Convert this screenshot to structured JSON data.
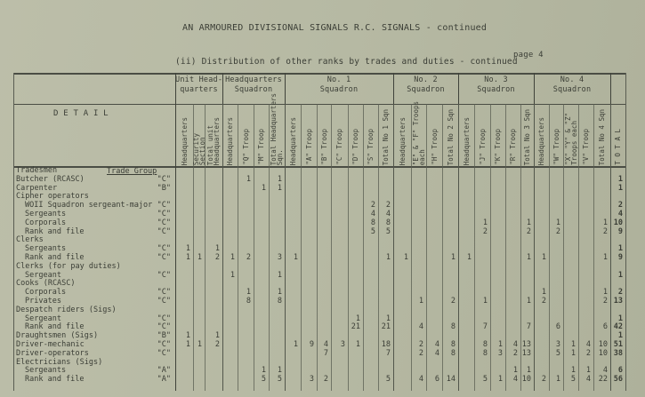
{
  "title": "AN ARMOURED DIVISIONAL SIGNALS R.C. SIGNALS - continued",
  "subtitle": "(ii) Distribution of other ranks by trades and duties - continued",
  "page": "page 4",
  "detail_header": "D E T A I L",
  "trade_group_header": "Trade Group",
  "groups": [
    {
      "label": "Unit Head-\nquarters",
      "from": 1,
      "to": 3
    },
    {
      "label": "Headquarters\nSquadron",
      "from": 4,
      "to": 7
    },
    {
      "label": "No. 1\nSquadron",
      "from": 8,
      "to": 14
    },
    {
      "label": "No. 2\nSquadron",
      "from": 15,
      "to": 18
    },
    {
      "label": "No. 3\nSquadron",
      "from": 19,
      "to": 23
    },
    {
      "label": "No. 4\nSquadron",
      "from": 24,
      "to": 28
    },
    {
      "label": "",
      "from": 29,
      "to": 29
    }
  ],
  "columns": [
    "Headquarters",
    "Security\nSection",
    "Total unit\nHeadquarters",
    "Headquarters",
    "\"Q\" Troop",
    "\"M\" Troop",
    "Total Headquarters\nSqn.",
    "Headquarters",
    "\"A\" Troop",
    "\"B\" Troop",
    "\"C\" Troop",
    "\"D\" Troop",
    "\"S\" Troop",
    "Total No 1 Sqn",
    "Headquarters",
    "\"E\" & \"F\" Troops\neach",
    "\"H\" Troop",
    "Total No 2 Sqn",
    "Headquarters",
    "\"J\" Troop",
    "\"K\" Troop",
    "\"R\" Troop",
    "Total No 3 Sqn",
    "Headquarters",
    "\"W\" Troop",
    "\"X\" \"Y\" & \"Z\"\nTroops each",
    "\"V\" Troop",
    "Total No 4 Sqn",
    "T O T A L"
  ],
  "rows": [
    {
      "label": "Tradesmen",
      "indent": 0,
      "group": ""
    },
    {
      "label": "Butcher (RCASC)",
      "indent": 0,
      "group": "\"C\"",
      "cells": {
        "5": "1",
        "7": "1",
        "29": "1"
      }
    },
    {
      "label": "Carpenter",
      "indent": 0,
      "group": "\"B\"",
      "cells": {
        "6": "1",
        "7": "1",
        "29": "1"
      }
    },
    {
      "label": "Cipher operators",
      "indent": 0,
      "group": ""
    },
    {
      "label": "WOII Squadron sergeant-major",
      "indent": 2,
      "group": "\"C\"",
      "cells": {
        "13": "2",
        "14": "2",
        "29": "2"
      }
    },
    {
      "label": "Sergeants",
      "indent": 2,
      "group": "\"C\"",
      "cells": {
        "13": "4",
        "14": "4",
        "29": "4"
      }
    },
    {
      "label": "Corporals",
      "indent": 2,
      "group": "\"C\"",
      "cells": {
        "13": "8",
        "14": "8",
        "20": "1",
        "23": "1",
        "25": "1",
        "28": "1",
        "29": "10"
      }
    },
    {
      "label": "Rank and file",
      "indent": 2,
      "group": "\"C\"",
      "cells": {
        "13": "5",
        "14": "5",
        "20": "2",
        "23": "2",
        "25": "2",
        "28": "2",
        "29": "9"
      }
    },
    {
      "label": "Clerks",
      "indent": 0,
      "group": ""
    },
    {
      "label": "Sergeants",
      "indent": 2,
      "group": "\"C\"",
      "cells": {
        "1": "1",
        "3": "1",
        "29": "1"
      }
    },
    {
      "label": "Rank and file",
      "indent": 2,
      "group": "\"C\"",
      "cells": {
        "1": "1",
        "2": "1",
        "3": "2",
        "4": "1",
        "5": "2",
        "7": "3",
        "8": "1",
        "14": "1",
        "15": "1",
        "18": "1",
        "19": "1",
        "23": "1",
        "24": "1",
        "28": "1",
        "29": "9"
      }
    },
    {
      "label": "Clerks (for pay duties)",
      "indent": 0,
      "group": ""
    },
    {
      "label": "Sergeant",
      "indent": 2,
      "group": "\"C\"",
      "cells": {
        "4": "1",
        "7": "1",
        "29": "1"
      }
    },
    {
      "label": "Cooks (RCASC)",
      "indent": 0,
      "group": ""
    },
    {
      "label": "Corporals",
      "indent": 2,
      "group": "\"C\"",
      "cells": {
        "5": "1",
        "7": "1",
        "24": "1",
        "28": "1",
        "29": "2"
      }
    },
    {
      "label": "Privates",
      "indent": 2,
      "group": "\"C\"",
      "cells": {
        "5": "8",
        "7": "8",
        "16": "1",
        "18": "2",
        "20": "1",
        "23": "1",
        "24": "2",
        "28": "2",
        "29": "13"
      }
    },
    {
      "label": "Despatch riders (Sigs)",
      "indent": 0,
      "group": ""
    },
    {
      "label": "Sergeant",
      "indent": 2,
      "group": "\"C\"",
      "cells": {
        "12": "1",
        "14": "1",
        "29": "1"
      }
    },
    {
      "label": "Rank and file",
      "indent": 2,
      "group": "\"C\"",
      "cells": {
        "12": "21",
        "14": "21",
        "16": "4",
        "18": "8",
        "20": "7",
        "23": "7",
        "25": "6",
        "28": "6",
        "29": "42"
      }
    },
    {
      "label": "Draughtsmen (Sigs)",
      "indent": 0,
      "group": "\"B\"",
      "cells": {
        "1": "1",
        "3": "1",
        "29": "1"
      }
    },
    {
      "label": "Driver-mechanic",
      "indent": 0,
      "group": "\"C\"",
      "cells": {
        "1": "1",
        "2": "1",
        "3": "2",
        "8": "1",
        "9": "9",
        "10": "4",
        "11": "3",
        "12": "1",
        "14": "18",
        "16": "2",
        "17": "4",
        "18": "8",
        "20": "8",
        "21": "1",
        "22": "4",
        "23": "13",
        "25": "3",
        "26": "1",
        "27": "4",
        "28": "10",
        "29": "51"
      }
    },
    {
      "label": "Driver-operators",
      "indent": 0,
      "group": "\"C\"",
      "cells": {
        "10": "7",
        "14": "7",
        "16": "2",
        "17": "4",
        "18": "8",
        "20": "8",
        "21": "3",
        "22": "2",
        "23": "13",
        "25": "5",
        "26": "1",
        "27": "2",
        "28": "10",
        "29": "38"
      }
    },
    {
      "label": "Electricians (Sigs)",
      "indent": 0,
      "group": ""
    },
    {
      "label": "Sergeants",
      "indent": 2,
      "group": "\"A\"",
      "cells": {
        "6": "1",
        "7": "1",
        "22": "1",
        "23": "1",
        "26": "1",
        "27": "1",
        "28": "4",
        "29": "6"
      }
    },
    {
      "label": "Rank and file",
      "indent": 2,
      "group": "\"A\"",
      "cells": {
        "6": "5",
        "7": "5",
        "9": "3",
        "10": "2",
        "14": "5",
        "16": "4",
        "17": "6",
        "18": "14",
        "20": "5",
        "21": "1",
        "22": "4",
        "23": "10",
        "24": "2",
        "25": "1",
        "26": "5",
        "27": "4",
        "28": "22",
        "29": "56"
      }
    }
  ]
}
